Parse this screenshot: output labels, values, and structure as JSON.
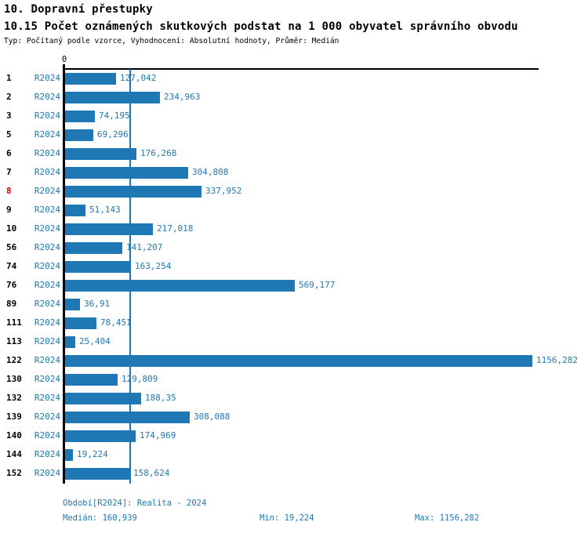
{
  "header": {
    "title": "10. Dopravní přestupky",
    "subtitle": "10.15 Počet oznámených skutkových podstat na 1 000 obyvatel správního obvodu",
    "meta": "Typ: Počítaný podle vzorce, Vyhodnocení: Absolutní hodnoty, Průměr: Medián"
  },
  "chart_data": {
    "type": "bar",
    "orientation": "horizontal",
    "title": "10.15 Počet oznámených skutkových podstat na 1 000 obyvatel správního obvodu",
    "series_label": "R2024",
    "zero_tick_label": "0",
    "categories": [
      "1",
      "2",
      "3",
      "5",
      "6",
      "7",
      "8",
      "9",
      "10",
      "56",
      "74",
      "76",
      "89",
      "111",
      "113",
      "122",
      "130",
      "132",
      "139",
      "140",
      "144",
      "152"
    ],
    "values": [
      127.042,
      234.963,
      74.195,
      69.296,
      176.268,
      304.808,
      337.952,
      51.143,
      217.018,
      141.207,
      163.254,
      569.177,
      36.91,
      78.451,
      25.404,
      1156.282,
      129.809,
      188.35,
      308.088,
      174.969,
      19.224,
      158.624
    ],
    "value_labels": [
      "127,042",
      "234,963",
      "74,195",
      "69,296",
      "176,268",
      "304,808",
      "337,952",
      "51,143",
      "217,018",
      "141,207",
      "163,254",
      "569,177",
      "36,91",
      "78,451",
      "25,404",
      "1156,282",
      "129,809",
      "188,35",
      "308,088",
      "174,969",
      "19,224",
      "158,624"
    ],
    "highlighted_category": "8",
    "median_value": 160.939,
    "min_value": 19.224,
    "max_value": 1156.282,
    "xlim": [
      0,
      1156.282
    ],
    "grid": false,
    "bar_color": "#1f77b4",
    "label_color": "#1f77b4",
    "highlight_color": "#e00000",
    "axis_color": "#000000"
  },
  "footer": {
    "period": "Období[R2024]: Realita - 2024",
    "median": "Medián: 160,939",
    "min": "Min: 19,224",
    "max": "Max: 1156,282"
  }
}
